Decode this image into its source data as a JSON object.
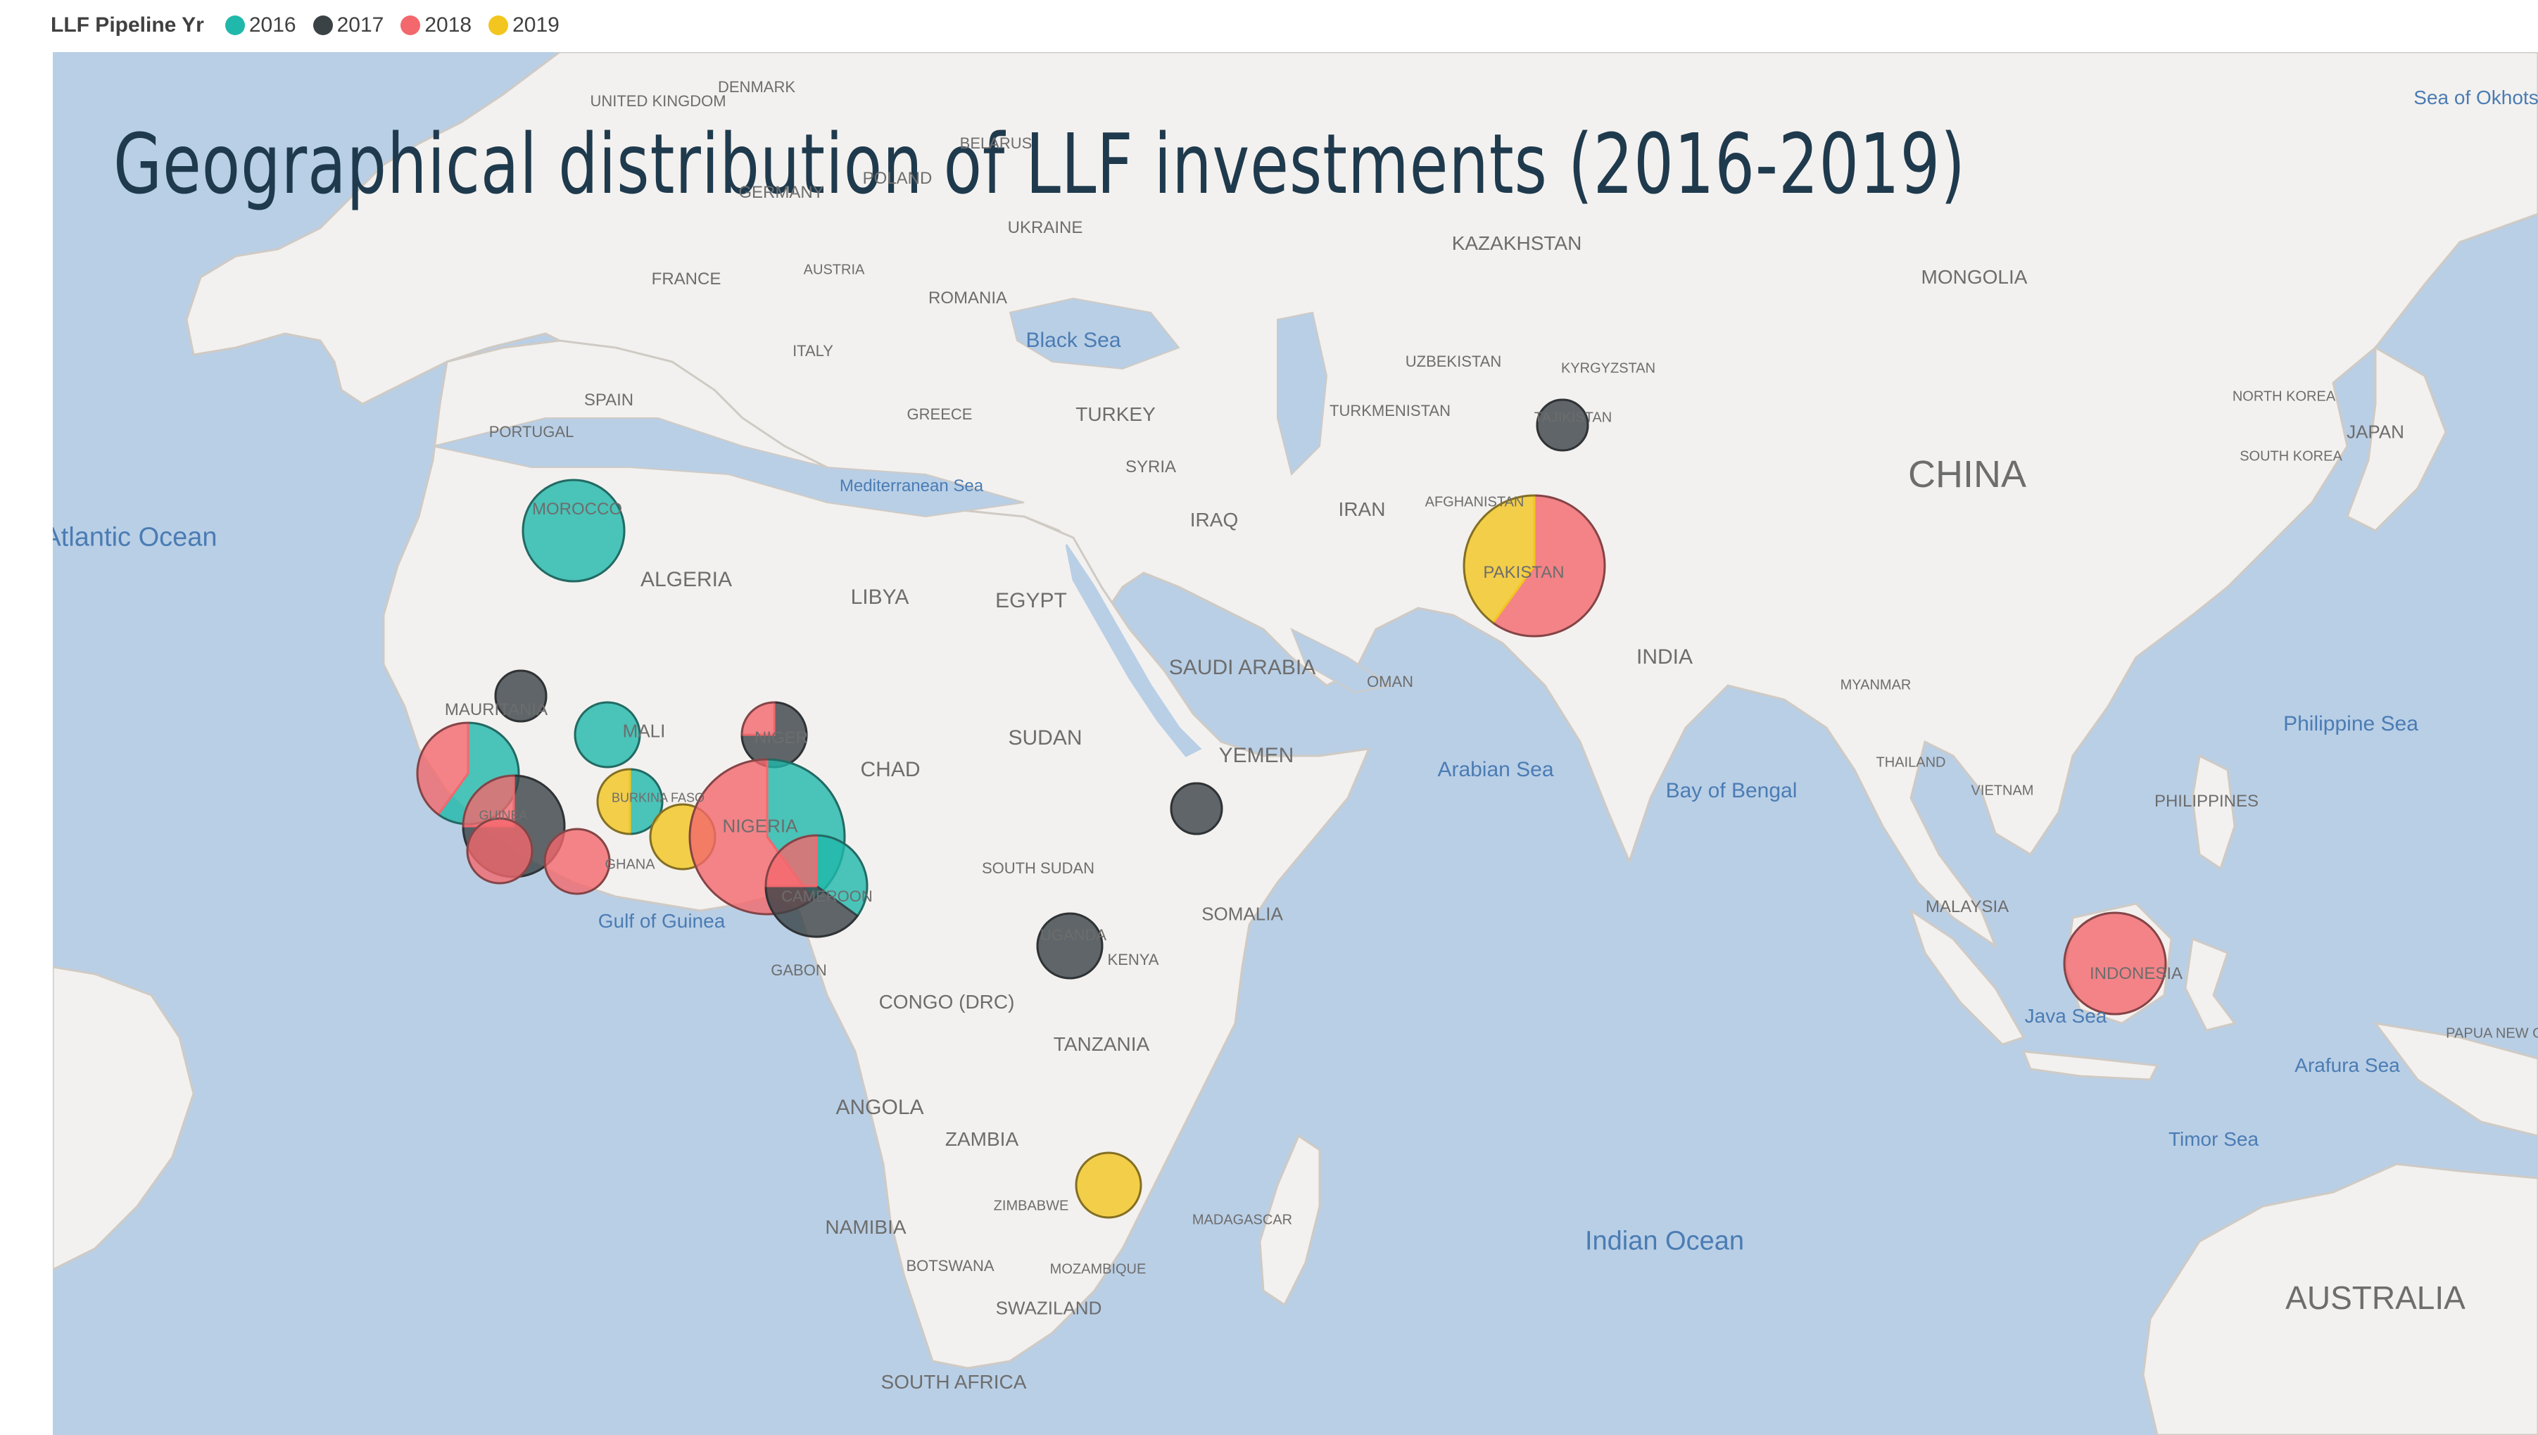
{
  "legend": {
    "title": "LLF Pipeline Yr",
    "items": [
      {
        "label": "2016",
        "color": "#1fb8aa"
      },
      {
        "label": "2017",
        "color": "#3a4246"
      },
      {
        "label": "2018",
        "color": "#f2686d"
      },
      {
        "label": "2019",
        "color": "#f2c61f"
      }
    ]
  },
  "map": {
    "title": "Geographical distribution of LLF investments (2016-2019)",
    "colors": {
      "land": "#f3f1ef",
      "water": "#b9cfe6",
      "border": "#cfcac4"
    },
    "labels": {
      "countries": [
        "DENMARK",
        "UNITED KINGDOM",
        "BELARUS",
        "GERMANY",
        "POLAND",
        "UKRAINE",
        "FRANCE",
        "AUSTRIA",
        "ROMANIA",
        "ITALY",
        "SPAIN",
        "PORTUGAL",
        "GREECE",
        "TURKEY",
        "KAZAKHSTAN",
        "MONGOLIA",
        "UZBEKISTAN",
        "KYRGYZSTAN",
        "TURKMENISTAN",
        "NORTH KOREA",
        "SOUTH KOREA",
        "JAPAN",
        "CHINA",
        "SYRIA",
        "IRAQ",
        "IRAN",
        "AFGHANISTAN",
        "PAKISTAN",
        "INDIA",
        "MOROCCO",
        "ALGERIA",
        "LIBYA",
        "EGYPT",
        "SAUDI ARABIA",
        "OMAN",
        "YEMEN",
        "MAURITANIA",
        "MALI",
        "NIGER",
        "CHAD",
        "SUDAN",
        "BURKINA FASO",
        "GUINEA",
        "GHANA",
        "NIGERIA",
        "CAMEROON",
        "SOUTH SUDAN",
        "SOMALIA",
        "UGANDA",
        "KENYA",
        "GABON",
        "CONGO (DRC)",
        "TANZANIA",
        "ANGOLA",
        "ZAMBIA",
        "ZIMBABWE",
        "NAMIBIA",
        "BOTSWANA",
        "MOZAMBIQUE",
        "MADAGASCAR",
        "SWAZILAND",
        "SOUTH AFRICA",
        "MYANMAR",
        "THAILAND",
        "VIETNAM",
        "PHILIPPINES",
        "MALAYSIA",
        "INDONESIA",
        "PAPUA NEW GUINEA",
        "AUSTRALIA",
        "TAJIKISTAN"
      ],
      "seas": [
        "Black Sea",
        "Mediterranean Sea",
        "Atlantic Ocean",
        "Arabian Sea",
        "Bay of Bengal",
        "Gulf of Guinea",
        "Indian Ocean",
        "Philippine Sea",
        "Java Sea",
        "Arafura Sea",
        "Timor Sea",
        "Sea of Okhotsk"
      ]
    },
    "locations": [
      {
        "name": "Morocco",
        "size": 3,
        "shares": {
          "2016": 1
        }
      },
      {
        "name": "Mauritania",
        "size": 1,
        "shares": {
          "2017": 1
        }
      },
      {
        "name": "Mali",
        "size": 2,
        "shares": {
          "2016": 1
        }
      },
      {
        "name": "Senegal",
        "size": 3,
        "shares": {
          "2016": 0.6,
          "2018": 0.4
        }
      },
      {
        "name": "Guinea",
        "size": 3,
        "shares": {
          "2017": 0.75,
          "2018": 0.25
        }
      },
      {
        "name": "Sierra Leone",
        "size": 2,
        "shares": {
          "2018": 1
        }
      },
      {
        "name": "Liberia",
        "size": 2,
        "shares": {
          "2018": 1
        }
      },
      {
        "name": "Burkina Faso",
        "size": 2,
        "shares": {
          "2016": 0.5,
          "2019": 0.5
        }
      },
      {
        "name": "Ghana",
        "size": 2,
        "shares": {
          "2019": 1
        }
      },
      {
        "name": "Niger",
        "size": 2,
        "shares": {
          "2017": 0.75,
          "2018": 0.25
        }
      },
      {
        "name": "Nigeria",
        "size": 5,
        "shares": {
          "2016": 0.4,
          "2018": 0.6
        }
      },
      {
        "name": "Cameroon",
        "size": 3,
        "shares": {
          "2016": 0.35,
          "2017": 0.4,
          "2018": 0.25
        }
      },
      {
        "name": "Ethiopia",
        "size": 1,
        "shares": {
          "2017": 1
        }
      },
      {
        "name": "Uganda",
        "size": 2,
        "shares": {
          "2017": 1
        }
      },
      {
        "name": "Malawi",
        "size": 2,
        "shares": {
          "2019": 1
        }
      },
      {
        "name": "Tajikistan",
        "size": 1,
        "shares": {
          "2017": 1
        }
      },
      {
        "name": "Pakistan",
        "size": 4,
        "shares": {
          "2018": 0.6,
          "2019": 0.4
        }
      },
      {
        "name": "Indonesia",
        "size": 3,
        "shares": {
          "2018": 1
        }
      }
    ]
  }
}
